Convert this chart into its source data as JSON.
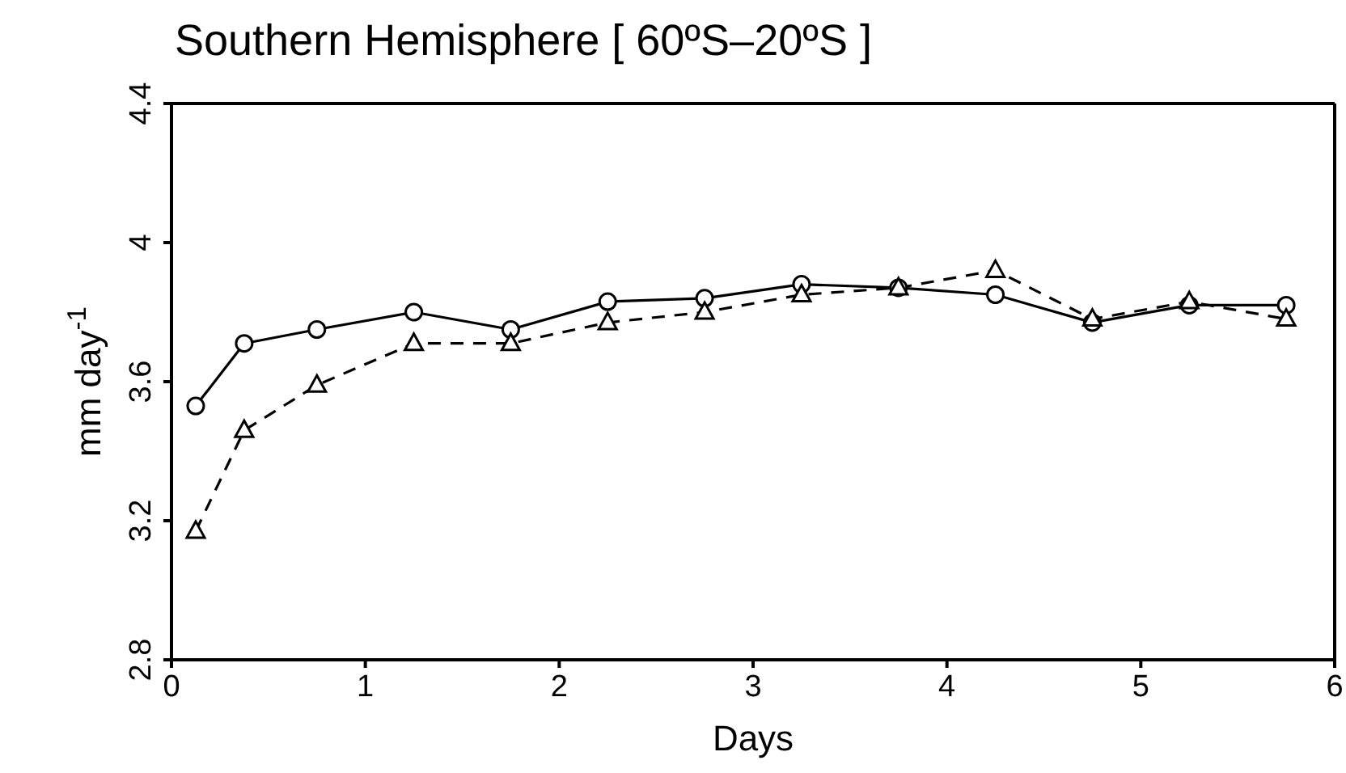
{
  "chart_data": {
    "type": "line",
    "title": "Southern Hemisphere [ 60ºS–20ºS ]",
    "xlabel": "Days",
    "ylabel": "mm day$^{-1}$",
    "xlim": [
      0,
      6
    ],
    "xticks": [
      0,
      1,
      2,
      3,
      4,
      5,
      6
    ],
    "ylim": [
      2.8,
      4.4
    ],
    "yticks": [
      2.8,
      3.2,
      3.6,
      4,
      4.4
    ],
    "grid": false,
    "x": [
      0.125,
      0.375,
      0.75,
      1.25,
      1.75,
      2.25,
      2.75,
      3.25,
      3.75,
      4.25,
      4.75,
      5.25,
      5.75
    ],
    "series": [
      {
        "color": "#000000",
        "marker": "circle",
        "line_style": "solid",
        "values": [
          3.53,
          3.71,
          3.75,
          3.8,
          3.75,
          3.83,
          3.84,
          3.88,
          3.87,
          3.85,
          3.77,
          3.82,
          3.82
        ]
      },
      {
        "color": "#000000",
        "marker": "triangle",
        "line_style": "dashed",
        "values": [
          3.17,
          3.46,
          3.59,
          3.71,
          3.71,
          3.77,
          3.8,
          3.85,
          3.87,
          3.92,
          3.78,
          3.83,
          3.78
        ]
      }
    ]
  }
}
